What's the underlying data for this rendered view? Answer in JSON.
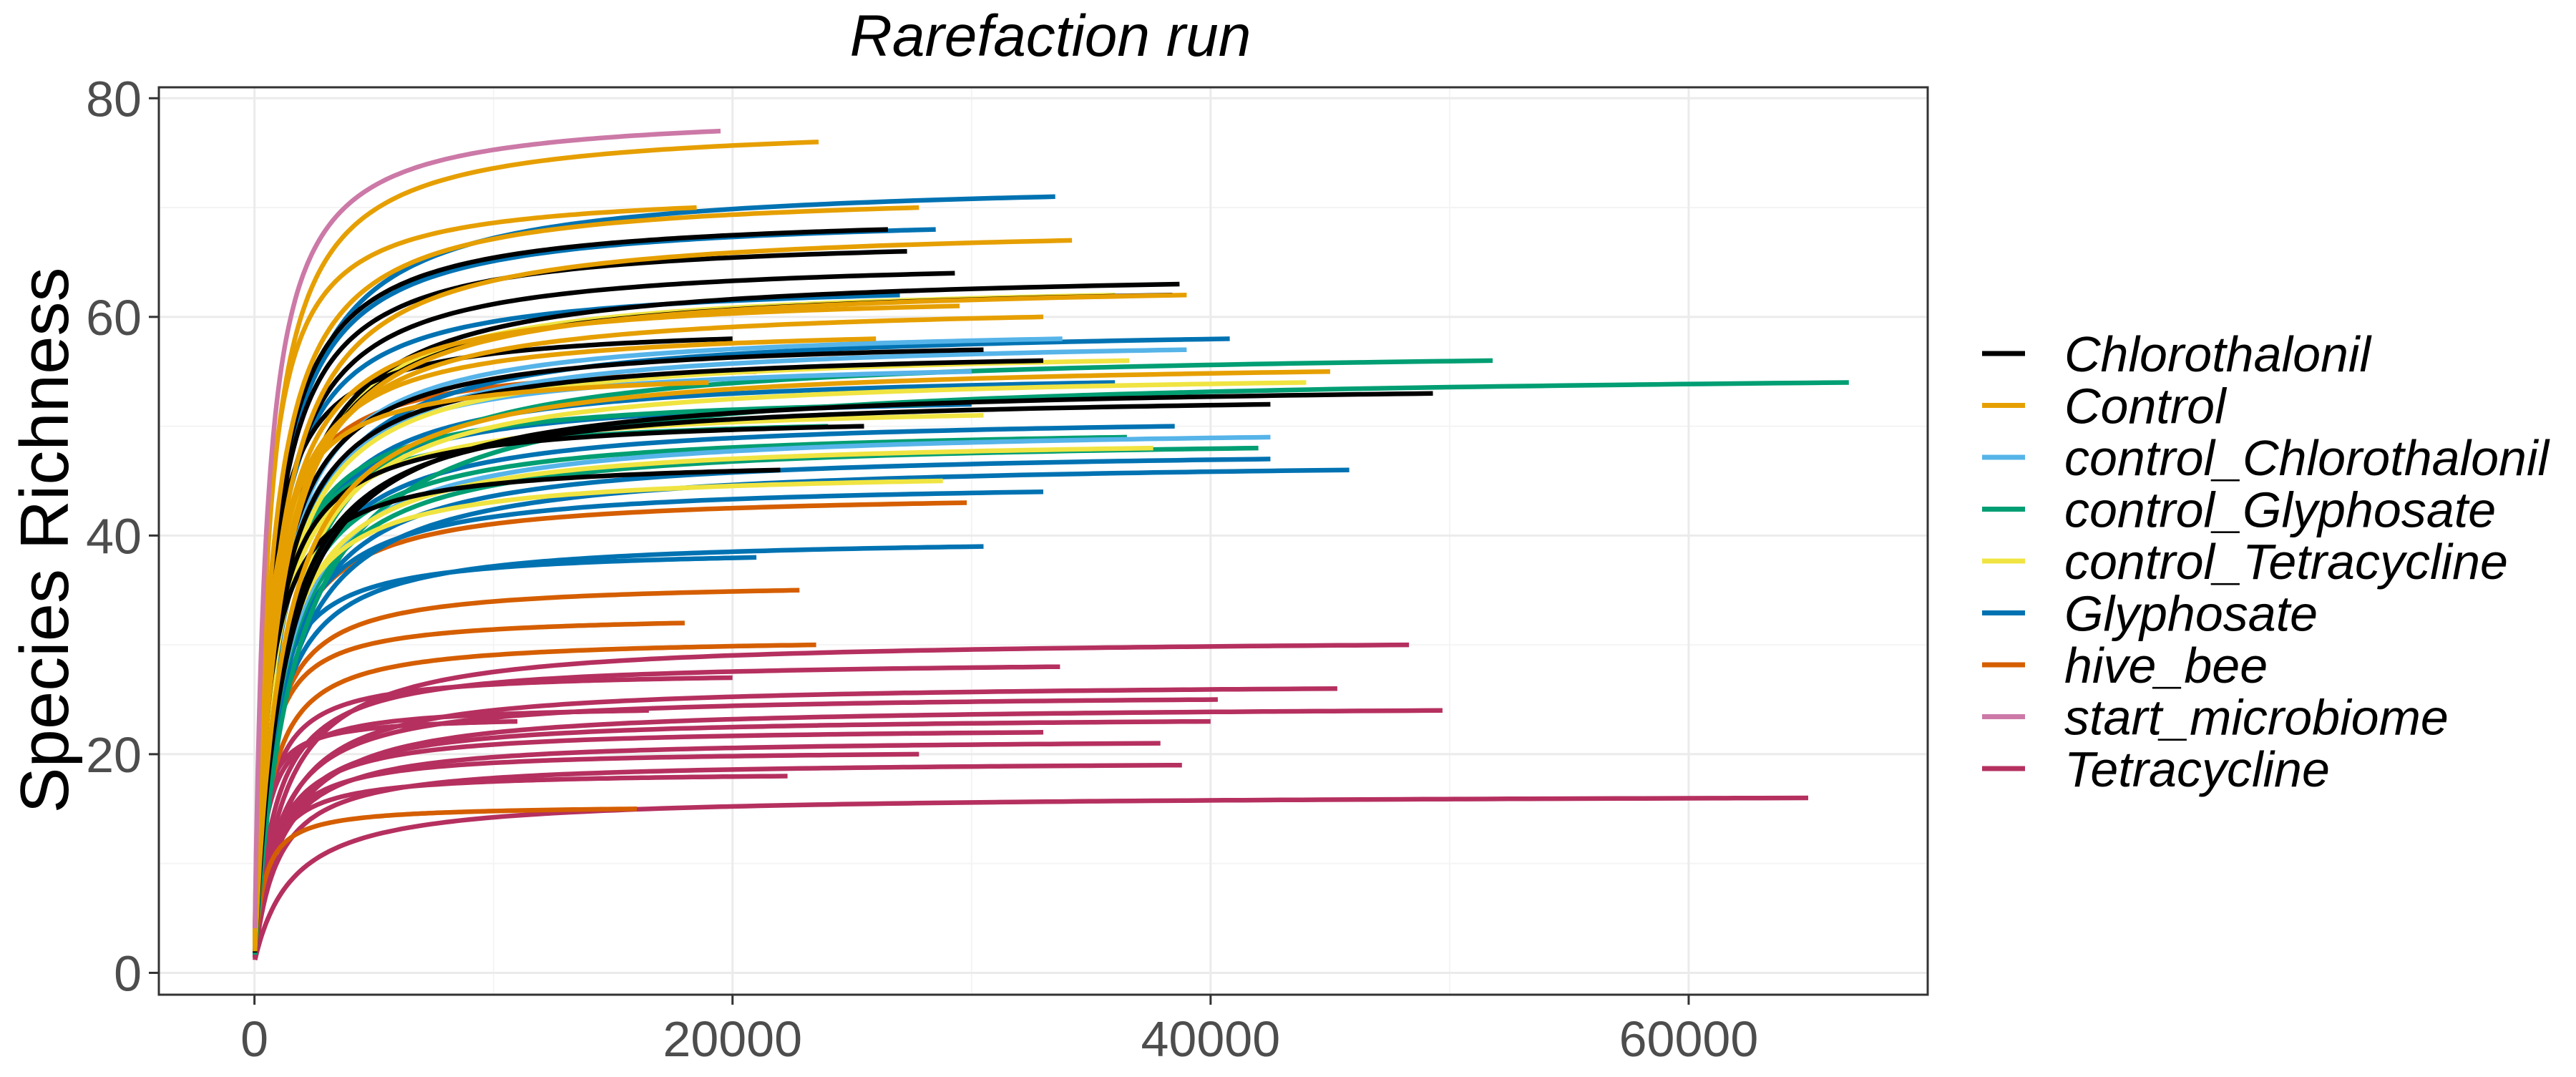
{
  "chart_data": {
    "type": "line",
    "title": "Rarefaction run",
    "xlabel": "",
    "ylabel": "Species Richness",
    "xlim": [
      -4000,
      70000
    ],
    "ylim": [
      -2,
      81
    ],
    "x_ticks": [
      0,
      20000,
      40000,
      60000
    ],
    "x_tick_labels": [
      "0",
      "20000",
      "40000",
      "60000"
    ],
    "y_ticks": [
      0,
      20,
      40,
      60,
      80
    ],
    "y_tick_labels": [
      "0",
      "20",
      "40",
      "60",
      "80"
    ],
    "grid": true,
    "legend_position": "right",
    "legend": [
      {
        "name": "Chlorothalonil",
        "color": "#000000"
      },
      {
        "name": "Control",
        "color": "#E69F00"
      },
      {
        "name": "control_Chlorothalonil",
        "color": "#56B4E9"
      },
      {
        "name": "control_Glyphosate",
        "color": "#009E73"
      },
      {
        "name": "control_Tetracycline",
        "color": "#F0E442"
      },
      {
        "name": "Glyphosate",
        "color": "#0072B2"
      },
      {
        "name": "hive_bee",
        "color": "#D55E00"
      },
      {
        "name": "start_microbiome",
        "color": "#CC79A7"
      },
      {
        "name": "Tetracycline",
        "color": "#B5305F"
      }
    ],
    "series": [
      {
        "name": "Tetracycline",
        "curves": [
          {
            "max_x": 65000,
            "max_y": 16
          },
          {
            "max_x": 49700,
            "max_y": 24
          },
          {
            "max_x": 48300,
            "max_y": 30
          },
          {
            "max_x": 45300,
            "max_y": 26
          },
          {
            "max_x": 40300,
            "max_y": 25
          },
          {
            "max_x": 40000,
            "max_y": 23
          },
          {
            "max_x": 38800,
            "max_y": 19
          },
          {
            "max_x": 37900,
            "max_y": 21
          },
          {
            "max_x": 33700,
            "max_y": 28
          },
          {
            "max_x": 33000,
            "max_y": 22
          },
          {
            "max_x": 27800,
            "max_y": 20
          },
          {
            "max_x": 22300,
            "max_y": 18
          },
          {
            "max_x": 20000,
            "max_y": 27
          },
          {
            "max_x": 16500,
            "max_y": 24
          },
          {
            "max_x": 11000,
            "max_y": 23
          }
        ]
      },
      {
        "name": "hive_bee",
        "curves": [
          {
            "max_x": 16000,
            "max_y": 15
          },
          {
            "max_x": 23500,
            "max_y": 30
          },
          {
            "max_x": 22800,
            "max_y": 35
          },
          {
            "max_x": 18000,
            "max_y": 32
          },
          {
            "max_x": 29800,
            "max_y": 43
          },
          {
            "max_x": 21000,
            "max_y": 55
          }
        ]
      },
      {
        "name": "Glyphosate",
        "curves": [
          {
            "max_x": 30500,
            "max_y": 39
          },
          {
            "max_x": 21000,
            "max_y": 38
          },
          {
            "max_x": 33500,
            "max_y": 71
          },
          {
            "max_x": 28500,
            "max_y": 68
          },
          {
            "max_x": 40800,
            "max_y": 58
          },
          {
            "max_x": 45800,
            "max_y": 46
          },
          {
            "max_x": 38500,
            "max_y": 50
          },
          {
            "max_x": 33000,
            "max_y": 44
          },
          {
            "max_x": 36000,
            "max_y": 54
          },
          {
            "max_x": 27000,
            "max_y": 62
          },
          {
            "max_x": 42500,
            "max_y": 47
          },
          {
            "max_x": 30000,
            "max_y": 52
          }
        ]
      },
      {
        "name": "control_Glyphosate",
        "curves": [
          {
            "max_x": 66700,
            "max_y": 54
          },
          {
            "max_x": 51800,
            "max_y": 56
          },
          {
            "max_x": 42000,
            "max_y": 48
          },
          {
            "max_x": 36500,
            "max_y": 49
          },
          {
            "max_x": 28000,
            "max_y": 52
          },
          {
            "max_x": 24000,
            "max_y": 50
          }
        ]
      },
      {
        "name": "control_Chlorothalonil",
        "curves": [
          {
            "max_x": 42500,
            "max_y": 49
          },
          {
            "max_x": 39000,
            "max_y": 57
          },
          {
            "max_x": 33800,
            "max_y": 58
          },
          {
            "max_x": 30000,
            "max_y": 55
          }
        ]
      },
      {
        "name": "control_Tetracycline",
        "curves": [
          {
            "max_x": 36000,
            "max_y": 62
          },
          {
            "max_x": 37600,
            "max_y": 48
          },
          {
            "max_x": 36600,
            "max_y": 56
          },
          {
            "max_x": 30500,
            "max_y": 51
          },
          {
            "max_x": 28800,
            "max_y": 45
          },
          {
            "max_x": 44000,
            "max_y": 54
          }
        ]
      },
      {
        "name": "Chlorothalonil",
        "curves": [
          {
            "max_x": 38700,
            "max_y": 63
          },
          {
            "max_x": 38400,
            "max_y": 62
          },
          {
            "max_x": 29300,
            "max_y": 64
          },
          {
            "max_x": 27300,
            "max_y": 66
          },
          {
            "max_x": 30500,
            "max_y": 57
          },
          {
            "max_x": 33000,
            "max_y": 56
          },
          {
            "max_x": 49300,
            "max_y": 53
          },
          {
            "max_x": 42500,
            "max_y": 52
          },
          {
            "max_x": 25500,
            "max_y": 50
          },
          {
            "max_x": 22000,
            "max_y": 46
          },
          {
            "max_x": 26500,
            "max_y": 68
          },
          {
            "max_x": 20000,
            "max_y": 58
          }
        ]
      },
      {
        "name": "Control",
        "curves": [
          {
            "max_x": 23600,
            "max_y": 76
          },
          {
            "max_x": 18500,
            "max_y": 70
          },
          {
            "max_x": 27800,
            "max_y": 70
          },
          {
            "max_x": 34200,
            "max_y": 67
          },
          {
            "max_x": 39000,
            "max_y": 62
          },
          {
            "max_x": 29500,
            "max_y": 61
          },
          {
            "max_x": 33000,
            "max_y": 60
          },
          {
            "max_x": 45000,
            "max_y": 55
          },
          {
            "max_x": 26000,
            "max_y": 58
          },
          {
            "max_x": 19000,
            "max_y": 54
          }
        ]
      },
      {
        "name": "start_microbiome",
        "curves": [
          {
            "max_x": 19500,
            "max_y": 77
          }
        ]
      }
    ]
  }
}
